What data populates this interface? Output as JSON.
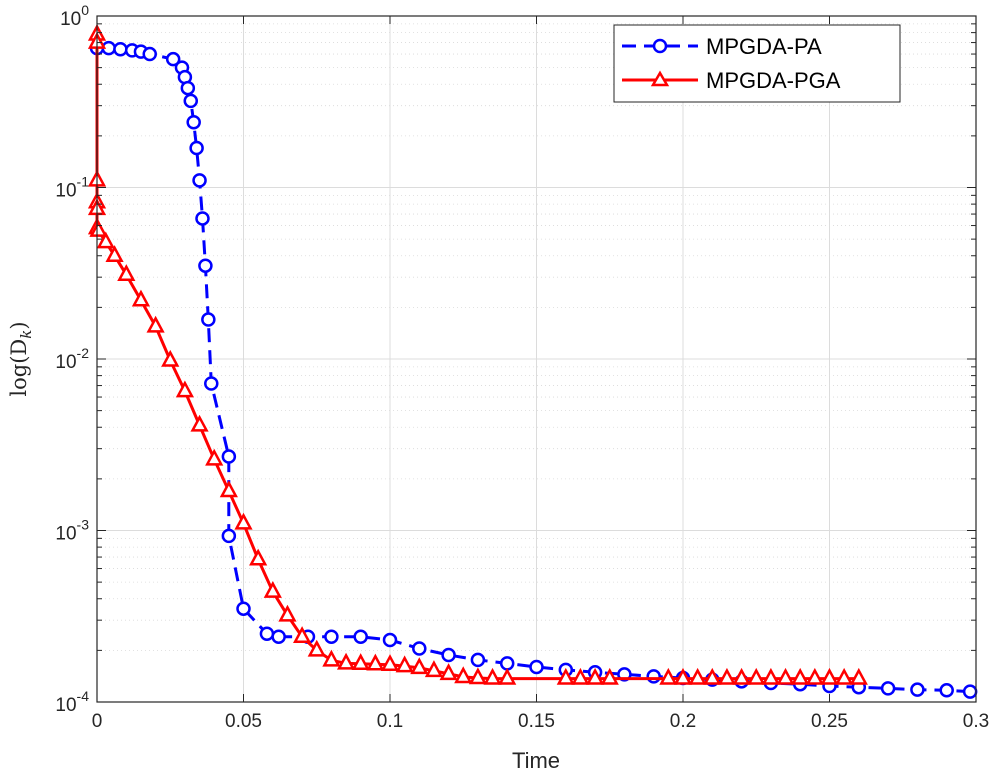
{
  "chart_data": {
    "type": "line",
    "title": "",
    "xlabel": "Time",
    "ylabel": "log(D_k)",
    "ylabel_parts": {
      "main": "log(D",
      "sub": "k",
      "close": ")"
    },
    "xlim": [
      0,
      0.3
    ],
    "ylim": [
      0.0001,
      1
    ],
    "yscale": "log",
    "grid": true,
    "legend_position": "top-right",
    "x_ticks": [
      0,
      0.05,
      0.1,
      0.15,
      0.2,
      0.25,
      0.3
    ],
    "x_tick_labels": [
      "0",
      "0.05",
      "0.1",
      "0.15",
      "0.2",
      "0.25",
      "0.3"
    ],
    "y_ticks": [
      1,
      0.1,
      0.01,
      0.001,
      0.0001
    ],
    "y_tick_labels": [
      {
        "base": "10",
        "exp": "0"
      },
      {
        "base": "10",
        "exp": "-1"
      },
      {
        "base": "10",
        "exp": "-2"
      },
      {
        "base": "10",
        "exp": "-3"
      },
      {
        "base": "10",
        "exp": "-4"
      }
    ],
    "series": [
      {
        "name": "MPGDA-PA",
        "color": "#0000ff",
        "line": "dashed",
        "marker": "circle",
        "x": [
          0,
          0.004,
          0.008,
          0.012,
          0.015,
          0.018,
          0.026,
          0.029,
          0.03,
          0.031,
          0.032,
          0.033,
          0.034,
          0.035,
          0.036,
          0.037,
          0.038,
          0.039,
          0.045,
          0.045,
          0.05,
          0.058,
          0.062,
          0.072,
          0.08,
          0.09,
          0.1,
          0.11,
          0.12,
          0.13,
          0.14,
          0.15,
          0.16,
          0.17,
          0.18,
          0.19,
          0.2,
          0.21,
          0.22,
          0.23,
          0.24,
          0.25,
          0.26,
          0.27,
          0.28,
          0.29,
          0.298
        ],
        "y": [
          0.65,
          0.65,
          0.64,
          0.63,
          0.62,
          0.6,
          0.56,
          0.5,
          0.44,
          0.38,
          0.32,
          0.24,
          0.17,
          0.11,
          0.066,
          0.035,
          0.017,
          0.0072,
          0.0027,
          0.00093,
          0.00035,
          0.00025,
          0.00024,
          0.00024,
          0.00024,
          0.00024,
          0.00023,
          0.000205,
          0.000188,
          0.000176,
          0.000168,
          0.00016,
          0.000154,
          0.000149,
          0.000145,
          0.000141,
          0.000138,
          0.000135,
          0.000132,
          0.000129,
          0.000127,
          0.000124,
          0.000122,
          0.00012,
          0.000118,
          0.000117,
          0.000115
        ]
      },
      {
        "name": "MPGDA-PGA",
        "color": "#ff0000",
        "line": "solid",
        "marker": "triangle",
        "x": [
          0,
          0,
          0,
          0,
          0,
          0,
          0.0005,
          0.003,
          0.006,
          0.01,
          0.015,
          0.02,
          0.025,
          0.03,
          0.035,
          0.04,
          0.045,
          0.05,
          0.055,
          0.06,
          0.065,
          0.07,
          0.075,
          0.08,
          0.085,
          0.09,
          0.095,
          0.1,
          0.105,
          0.11,
          0.115,
          0.12,
          0.125,
          0.13,
          0.135,
          0.14,
          0.16,
          0.165,
          0.17,
          0.175,
          0.195,
          0.2,
          0.205,
          0.21,
          0.215,
          0.22,
          0.225,
          0.23,
          0.235,
          0.24,
          0.245,
          0.25,
          0.255,
          0.26
        ],
        "y": [
          0.78,
          0.7,
          0.11,
          0.082,
          0.075,
          0.058,
          0.056,
          0.048,
          0.04,
          0.031,
          0.022,
          0.0155,
          0.0098,
          0.0065,
          0.0041,
          0.0026,
          0.0017,
          0.0011,
          0.00068,
          0.00044,
          0.00032,
          0.00024,
          0.0002,
          0.000175,
          0.000168,
          0.000167,
          0.000166,
          0.000165,
          0.000162,
          0.000158,
          0.000152,
          0.000146,
          0.00014,
          0.000138,
          0.000137,
          0.000137,
          0.000137,
          0.000137,
          0.000137,
          0.000137,
          0.000137,
          0.000137,
          0.000137,
          0.000137,
          0.000137,
          0.000137,
          0.000137,
          0.000137,
          0.000137,
          0.000137,
          0.000137,
          0.000137,
          0.000137,
          0.000137
        ]
      }
    ]
  }
}
